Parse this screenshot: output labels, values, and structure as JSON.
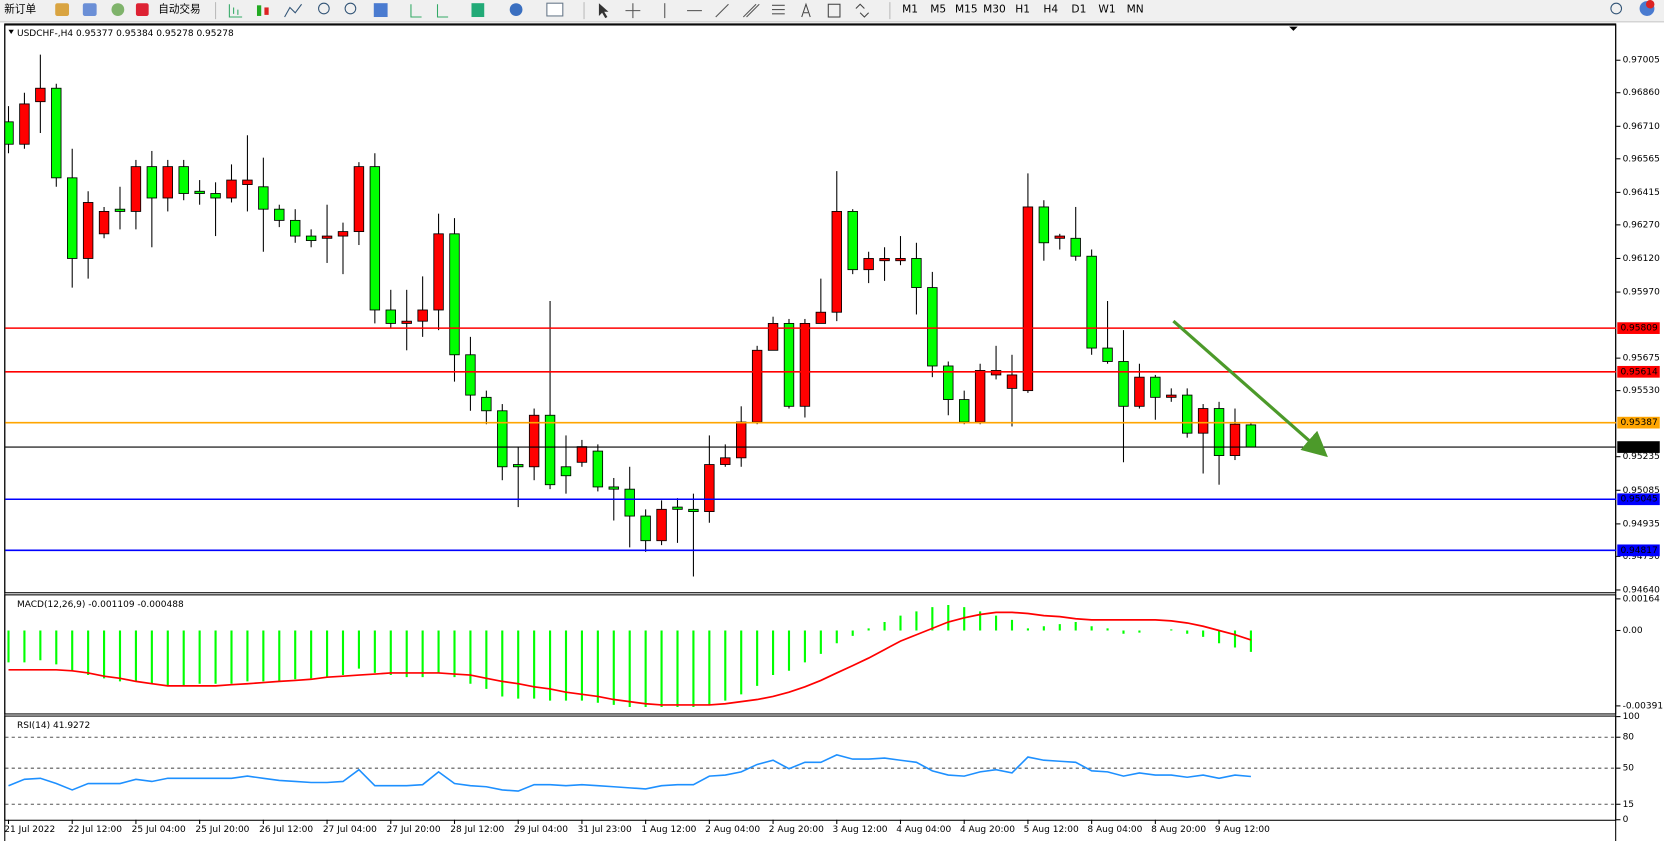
{
  "toolbar": {
    "buttons": [
      "新订单",
      "自动交易"
    ],
    "timeframes": [
      "M1",
      "M5",
      "M15",
      "M30",
      "H1",
      "H4",
      "D1",
      "W1",
      "MN"
    ]
  },
  "chart_data": [
    {
      "type": "candlestick",
      "symbol": "USDCHF-,H4",
      "categories": [
        "21 Jul 2022",
        null,
        null,
        null,
        "22 Jul 12:00",
        null,
        null,
        null,
        "25 Jul 04:00",
        null,
        null,
        null,
        "25 Jul 20:00",
        null,
        null,
        null,
        "26 Jul 12:00",
        null,
        null,
        null,
        "27 Jul 04:00",
        null,
        null,
        null,
        "27 Jul 20:00",
        null,
        null,
        null,
        "28 Jul 12:00",
        null,
        null,
        null,
        "29 Jul 04:00",
        null,
        null,
        null,
        "31 Jul 23:00",
        null,
        null,
        null,
        "1 Aug 12:00",
        null,
        null,
        null,
        "2 Aug 04:00",
        null,
        null,
        null,
        "2 Aug 20:00",
        null,
        null,
        null,
        "3 Aug 12:00",
        null,
        null,
        null,
        "4 Aug 04:00",
        null,
        null,
        null,
        "4 Aug 20:00",
        null,
        null,
        null,
        "5 Aug 12:00",
        null,
        null,
        null,
        "8 Aug 04:00",
        null,
        null,
        null,
        "8 Aug 20:00",
        null,
        null,
        null,
        "9 Aug 12:00",
        null,
        null
      ],
      "open": [
        0.9673,
        0.9663,
        0.9682,
        0.9688,
        0.9648,
        0.9612,
        0.9623,
        0.9634,
        0.9633,
        0.9653,
        0.9639,
        0.9653,
        0.9642,
        0.9641,
        0.9639,
        0.9645,
        0.9644,
        0.9634,
        0.9629,
        0.9622,
        0.9621,
        0.9622,
        0.9624,
        0.9653,
        0.9589,
        0.9583,
        0.9584,
        0.9589,
        0.9623,
        0.9569,
        0.955,
        0.9544,
        0.952,
        0.9519,
        0.9542,
        0.9519,
        0.9521,
        0.9526,
        0.951,
        0.9509,
        0.9497,
        0.9486,
        0.9501,
        0.95,
        0.9499,
        0.952,
        0.9523,
        0.9539,
        0.9571,
        0.9583,
        0.9546,
        0.9583,
        0.9588,
        0.9633,
        0.9607,
        0.9611,
        0.9611,
        0.9612,
        0.9599,
        0.9564,
        0.9549,
        0.9539,
        0.956,
        0.9554,
        0.9553,
        0.9635,
        0.9621,
        0.9621,
        0.9613,
        0.9572,
        0.9566,
        0.9546,
        0.9559,
        0.955,
        0.9551,
        0.9534,
        0.9545,
        0.9524,
        0.95377
      ],
      "high": [
        0.968,
        0.9686,
        0.9703,
        0.969,
        0.9661,
        0.9642,
        0.9635,
        0.9644,
        0.9656,
        0.966,
        0.9656,
        0.9656,
        0.9647,
        0.9646,
        0.9654,
        0.9667,
        0.9657,
        0.9636,
        0.9634,
        0.9625,
        0.9636,
        0.9628,
        0.9655,
        0.9659,
        0.9598,
        0.9598,
        0.9604,
        0.9632,
        0.963,
        0.9577,
        0.9553,
        0.9547,
        0.9528,
        0.9545,
        0.9593,
        0.9533,
        0.9531,
        0.9529,
        0.9514,
        0.9519,
        0.95,
        0.9504,
        0.9505,
        0.9507,
        0.9533,
        0.9529,
        0.9546,
        0.9573,
        0.9586,
        0.9585,
        0.9585,
        0.9603,
        0.9651,
        0.9634,
        0.9615,
        0.9617,
        0.9622,
        0.9619,
        0.9606,
        0.9566,
        0.9553,
        0.9565,
        0.9573,
        0.9569,
        0.965,
        0.9638,
        0.9623,
        0.9635,
        0.9616,
        0.9593,
        0.958,
        0.9565,
        0.956,
        0.9554,
        0.9554,
        0.9547,
        0.9548,
        0.9545,
        0.95384
      ],
      "low": [
        0.9659,
        0.9661,
        0.9668,
        0.9644,
        0.9599,
        0.9603,
        0.9621,
        0.9625,
        0.9625,
        0.9617,
        0.9633,
        0.9638,
        0.9636,
        0.9622,
        0.9637,
        0.9633,
        0.9615,
        0.9626,
        0.9619,
        0.9617,
        0.961,
        0.9605,
        0.9618,
        0.9583,
        0.9581,
        0.9571,
        0.9577,
        0.958,
        0.9557,
        0.9544,
        0.9538,
        0.9513,
        0.9501,
        0.9513,
        0.9509,
        0.9507,
        0.9519,
        0.9508,
        0.9495,
        0.9483,
        0.9481,
        0.9484,
        0.9485,
        0.947,
        0.9494,
        0.9519,
        0.9519,
        0.9538,
        0.9571,
        0.9545,
        0.9541,
        0.9583,
        0.9584,
        0.9605,
        0.9601,
        0.9602,
        0.9609,
        0.9587,
        0.9559,
        0.9542,
        0.9538,
        0.9538,
        0.9558,
        0.9537,
        0.9552,
        0.9611,
        0.9616,
        0.9611,
        0.9569,
        0.9565,
        0.9521,
        0.9545,
        0.954,
        0.9548,
        0.9532,
        0.9516,
        0.9511,
        0.9522,
        0.95278
      ],
      "close": [
        0.9663,
        0.9681,
        0.9688,
        0.9648,
        0.9612,
        0.9637,
        0.9633,
        0.9633,
        0.9653,
        0.9639,
        0.9653,
        0.9641,
        0.9641,
        0.9639,
        0.9647,
        0.9647,
        0.9634,
        0.9629,
        0.9622,
        0.962,
        0.9622,
        0.9624,
        0.9653,
        0.9589,
        0.9583,
        0.9584,
        0.9589,
        0.9623,
        0.9569,
        0.9551,
        0.9544,
        0.9519,
        0.9519,
        0.9542,
        0.9511,
        0.9515,
        0.9528,
        0.951,
        0.9509,
        0.9497,
        0.9486,
        0.95,
        0.95,
        0.9499,
        0.952,
        0.9523,
        0.9539,
        0.9571,
        0.9583,
        0.9546,
        0.9583,
        0.9588,
        0.9633,
        0.9607,
        0.9612,
        0.9612,
        0.9612,
        0.9599,
        0.9564,
        0.9549,
        0.9539,
        0.9562,
        0.9562,
        0.956,
        0.9635,
        0.9619,
        0.9622,
        0.9613,
        0.9572,
        0.9566,
        0.9546,
        0.9559,
        0.955,
        0.9551,
        0.9534,
        0.9545,
        0.9524,
        0.9538,
        0.95278
      ],
      "up_color": "#ff0000",
      "down_color": "#00ff00",
      "ylim": [
        0.9463,
        0.9716
      ],
      "yticks": [
        0.97005,
        {
          "value": 0.9686,
          "label": "0.96860"
        },
        {
          "value": 0.9671,
          "label": "0.96710"
        },
        0.96565,
        0.96415,
        {
          "value": 0.9627,
          "label": "0.96270"
        },
        {
          "value": 0.9612,
          "label": "0.96120"
        },
        {
          "value": 0.9597,
          "label": "0.95970"
        },
        0.95675,
        {
          "value": 0.9553,
          "label": "0.95530"
        },
        0.95235,
        0.95085,
        0.94935,
        {
          "value": 0.9479,
          "label": "0.94790"
        },
        {
          "value": 0.9464,
          "label": "0.94640"
        }
      ],
      "lines": [
        {
          "value": 0.95809,
          "color": "#ff0000"
        },
        {
          "value": 0.95614,
          "color": "#ff0000"
        },
        {
          "value": 0.95387,
          "color": "#ffa500"
        },
        {
          "value": 0.95278,
          "color": "#000000"
        },
        {
          "value": 0.95045,
          "color": "#0000ff"
        },
        {
          "value": 0.94817,
          "color": "#0000ff"
        }
      ]
    },
    {
      "type": "macd",
      "title": "MACD(12,26,9)",
      "values": [
        -0.00165,
        -0.00165,
        -0.00154,
        -0.00176,
        -0.00209,
        -0.00231,
        -0.00248,
        -0.00264,
        -0.00264,
        -0.00276,
        -0.00287,
        -0.00287,
        -0.00276,
        -0.00276,
        -0.00276,
        -0.00264,
        -0.00264,
        -0.00264,
        -0.00253,
        -0.00248,
        -0.00242,
        -0.00231,
        -0.00198,
        -0.0022,
        -0.00231,
        -0.00242,
        -0.00242,
        -0.0022,
        -0.00242,
        -0.00276,
        -0.00303,
        -0.00342,
        -0.00353,
        -0.00353,
        -0.00364,
        -0.00364,
        -0.00364,
        -0.00375,
        -0.00386,
        -0.00397,
        -0.00397,
        -0.00397,
        -0.00397,
        -0.00397,
        -0.00386,
        -0.00364,
        -0.00331,
        -0.00287,
        -0.00231,
        -0.00209,
        -0.00165,
        -0.00121,
        -0.00066,
        -0.00028,
        0.00011,
        0.00044,
        0.00077,
        0.00099,
        0.00121,
        0.00132,
        0.00121,
        0.00099,
        0.00077,
        0.00055,
        0.00011,
        0.00022,
        0.00033,
        0.00044,
        0.00022,
        0.00011,
        -0.00017,
        -0.00011,
        0,
        6e-05,
        -0.00017,
        -0.00033,
        -0.00066,
        -0.00088,
        -0.001109
      ],
      "color": "#00ff00",
      "signal": {
        "color": "#ff0000",
        "values": [
          -0.00204,
          -0.00204,
          -0.00204,
          -0.00204,
          -0.00209,
          -0.0022,
          -0.00237,
          -0.00248,
          -0.00264,
          -0.00276,
          -0.00287,
          -0.00287,
          -0.00287,
          -0.00287,
          -0.00281,
          -0.00276,
          -0.0027,
          -0.00264,
          -0.00259,
          -0.00253,
          -0.00242,
          -0.00237,
          -0.00231,
          -0.00226,
          -0.0022,
          -0.0022,
          -0.0022,
          -0.0022,
          -0.00226,
          -0.00231,
          -0.00248,
          -0.00264,
          -0.00276,
          -0.00292,
          -0.00303,
          -0.0032,
          -0.00331,
          -0.00342,
          -0.00358,
          -0.00369,
          -0.0038,
          -0.00386,
          -0.00386,
          -0.00386,
          -0.00386,
          -0.0038,
          -0.00369,
          -0.00358,
          -0.00342,
          -0.0032,
          -0.00292,
          -0.00259,
          -0.0022,
          -0.00182,
          -0.00143,
          -0.00099,
          -0.00055,
          -0.00022,
          0.00011,
          0.00044,
          0.00066,
          0.00083,
          0.00094,
          0.00094,
          0.00088,
          0.00077,
          0.00072,
          0.00061,
          0.00055,
          0.00055,
          0.00055,
          0.00055,
          0.00055,
          0.0005,
          0.00039,
          0.00022,
          0,
          -0.00022,
          -0.000488
        ]
      },
      "ylim": [
        -0.0043,
        0.00182
      ],
      "yticks": [
        0.00164,
        {
          "value": 0,
          "label": "0.00"
        },
        -0.00391
      ]
    },
    {
      "type": "line",
      "title": "RSI(14)",
      "values": [
        33.0,
        39.2,
        40.2,
        35.1,
        28.9,
        35.1,
        35.1,
        35.1,
        39.2,
        37.1,
        40.2,
        40.2,
        40.2,
        40.2,
        40.2,
        42.3,
        40.2,
        38.1,
        37.1,
        36.1,
        36.1,
        37.1,
        48.5,
        33.0,
        33.0,
        33.0,
        34.0,
        46.4,
        35.1,
        33.0,
        32.0,
        28.9,
        27.8,
        34.0,
        34.0,
        33.0,
        34.0,
        33.0,
        32.0,
        30.9,
        29.9,
        33.0,
        34.0,
        34.0,
        42.3,
        43.3,
        46.4,
        53.6,
        57.7,
        49.5,
        55.7,
        55.7,
        62.9,
        58.8,
        58.8,
        59.8,
        57.7,
        55.7,
        47.4,
        43.3,
        42.3,
        46.4,
        48.5,
        45.4,
        60.8,
        57.7,
        56.7,
        55.7,
        47.4,
        46.4,
        42.3,
        45.4,
        43.3,
        43.3,
        41.2,
        43.3,
        40.2,
        43.3,
        41.9272
      ],
      "color": "#1e90ff",
      "ylim": [
        0,
        100
      ],
      "yticks": [
        100,
        80,
        50,
        15,
        0
      ],
      "levels": [
        80,
        50,
        15
      ]
    }
  ]
}
